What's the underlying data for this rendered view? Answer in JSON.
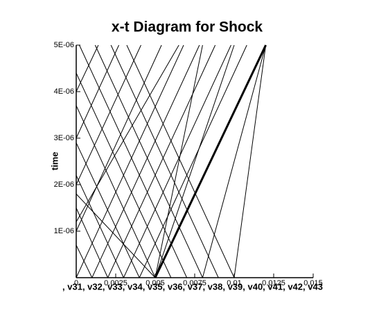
{
  "chart_data": {
    "type": "line",
    "title": "x-t Diagram for Shock",
    "x_label": ", v31, v32, v33, v34, v35, v36, v37, v38, v39, v40, v41, v42, v43",
    "y_label": "time",
    "xlim": [
      0,
      0.015
    ],
    "ylim": [
      0,
      5e-06
    ],
    "xticks": [
      0,
      0.0025,
      0.005,
      0.0075,
      0.01,
      0.0125,
      0.015
    ],
    "yticks": [
      {
        "value": 1e-06,
        "label": "1E-06"
      },
      {
        "value": 2e-06,
        "label": "2E-06"
      },
      {
        "value": 3e-06,
        "label": "3E-06"
      },
      {
        "value": 4e-06,
        "label": "4E-06"
      },
      {
        "value": 5e-06,
        "label": "5E-06"
      }
    ],
    "color": "#000000",
    "series": [
      {
        "x": [
          0.005,
          0.012
        ],
        "values": [
          0,
          5e-06
        ],
        "bold": true
      },
      {
        "x": [
          0,
          0.0068
        ],
        "values": [
          0,
          5e-06
        ]
      },
      {
        "x": [
          0.001,
          0.0078
        ],
        "values": [
          0,
          5e-06
        ]
      },
      {
        "x": [
          0.002,
          0.0088
        ],
        "values": [
          0,
          5e-06
        ]
      },
      {
        "x": [
          0.003,
          0.0098
        ],
        "values": [
          0,
          5e-06
        ]
      },
      {
        "x": [
          0.004,
          0.0108
        ],
        "values": [
          0,
          5e-06
        ]
      },
      {
        "x": [
          0,
          0.0054
        ],
        "values": [
          1e-06,
          5e-06
        ]
      },
      {
        "x": [
          0,
          0.0041
        ],
        "values": [
          2e-06,
          5e-06
        ]
      },
      {
        "x": [
          0,
          0.0027
        ],
        "values": [
          3e-06,
          5e-06
        ]
      },
      {
        "x": [
          0,
          0.0014
        ],
        "values": [
          4e-06,
          5e-06
        ]
      },
      {
        "x": [
          0.005,
          0
        ],
        "values": [
          0,
          3.7e-06
        ]
      },
      {
        "x": [
          0.004,
          0
        ],
        "values": [
          0,
          2.9e-06
        ]
      },
      {
        "x": [
          0.003,
          0
        ],
        "values": [
          0,
          2.2e-06
        ]
      },
      {
        "x": [
          0.002,
          0
        ],
        "values": [
          0,
          1.5e-06
        ]
      },
      {
        "x": [
          0.001,
          0
        ],
        "values": [
          0,
          7e-07
        ]
      },
      {
        "x": [
          0.01,
          0.0032
        ],
        "values": [
          0,
          5e-06
        ]
      },
      {
        "x": [
          0.009,
          0.0022
        ],
        "values": [
          0,
          5e-06
        ]
      },
      {
        "x": [
          0.008,
          0.0012
        ],
        "values": [
          0,
          5e-06
        ]
      },
      {
        "x": [
          0.007,
          0.0002
        ],
        "values": [
          0,
          5e-06
        ]
      },
      {
        "x": [
          0.006,
          0
        ],
        "values": [
          0,
          4.4e-06
        ]
      },
      {
        "x": [
          0.008,
          0.005
        ],
        "values": [
          5e-06,
          0
        ]
      },
      {
        "x": [
          0.01,
          0.005
        ],
        "values": [
          5e-06,
          0
        ]
      },
      {
        "x": [
          0.008,
          0.012
        ],
        "values": [
          0,
          5e-06
        ]
      },
      {
        "x": [
          0.01,
          0.012
        ],
        "values": [
          0,
          5e-06
        ]
      },
      {
        "x": [
          0.005,
          0
        ],
        "values": [
          0,
          1.8e-06
        ]
      },
      {
        "x": [
          0.0065,
          0
        ],
        "values": [
          5e-06,
          1.2e-06
        ]
      }
    ]
  }
}
